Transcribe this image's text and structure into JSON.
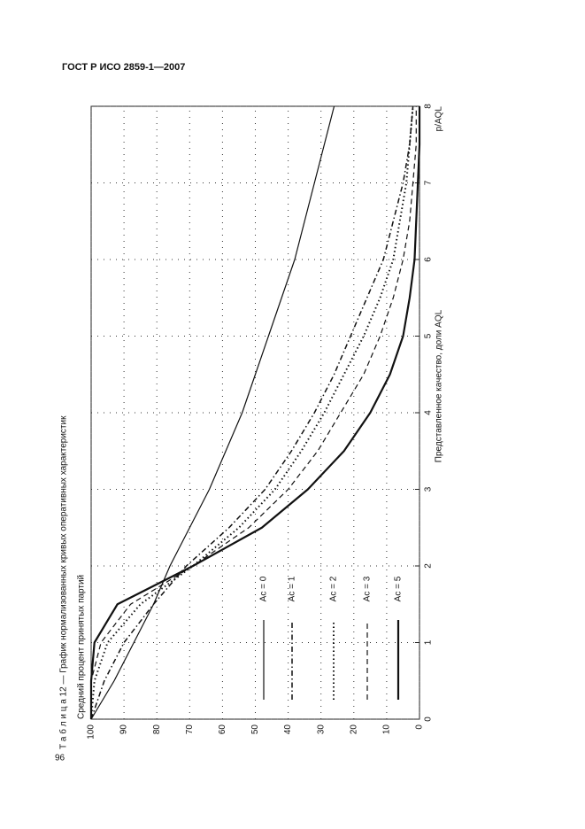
{
  "header": "ГОСТ Р ИСО 2859-1—2007",
  "page_number": "96",
  "caption": "Т а б л и ц а 12 — График нормализованных кривых оперативных характеристик",
  "chart_data": {
    "type": "line",
    "ylabel": "Средний процент принятых партий",
    "xlabel": "Представленное качество, доли AQL",
    "xunit": "p/AQL",
    "x": [
      0,
      0.5,
      1,
      1.5,
      2,
      2.5,
      3,
      3.5,
      4,
      4.5,
      5,
      5.5,
      6,
      6.5,
      7,
      7.5,
      8
    ],
    "xlim": [
      0,
      8
    ],
    "xticks": [
      0,
      1,
      2,
      3,
      4,
      5,
      6,
      7,
      8
    ],
    "ylim": [
      0,
      100
    ],
    "yticks": [
      0,
      10,
      20,
      30,
      40,
      50,
      60,
      70,
      80,
      90,
      100
    ],
    "grid": true,
    "series": [
      {
        "name": "Ac = 0",
        "color": "#111111",
        "linestyle": "solid",
        "values": [
          100,
          93,
          87,
          81,
          76,
          70,
          64,
          59,
          54,
          50,
          46,
          42,
          38,
          35,
          32,
          29,
          26
        ]
      },
      {
        "name": "Ac = 1",
        "color": "#111111",
        "linestyle": "dashdot",
        "values": [
          100,
          96,
          90,
          81,
          71,
          58,
          47,
          39,
          32,
          26,
          21,
          16,
          11,
          8,
          5,
          3,
          2
        ]
      },
      {
        "name": "Ac = 2",
        "color": "#111111",
        "linestyle": "dotted",
        "values": [
          100,
          99,
          95,
          85,
          69,
          55,
          44,
          36,
          29,
          23,
          17,
          12,
          8,
          6,
          4,
          3,
          2
        ]
      },
      {
        "name": "Ac = 3",
        "color": "#111111",
        "linestyle": "dashed",
        "values": [
          100,
          100,
          97,
          88,
          69,
          52,
          40,
          31,
          24,
          17,
          12,
          8,
          5,
          3,
          2,
          1,
          1
        ]
      },
      {
        "name": "Ac = 5",
        "color": "#111111",
        "linestyle": "thick",
        "values": [
          100,
          100,
          99,
          92,
          69,
          48,
          34,
          23,
          15,
          9,
          5,
          3,
          1.5,
          1,
          0.5,
          0,
          0
        ]
      }
    ]
  }
}
